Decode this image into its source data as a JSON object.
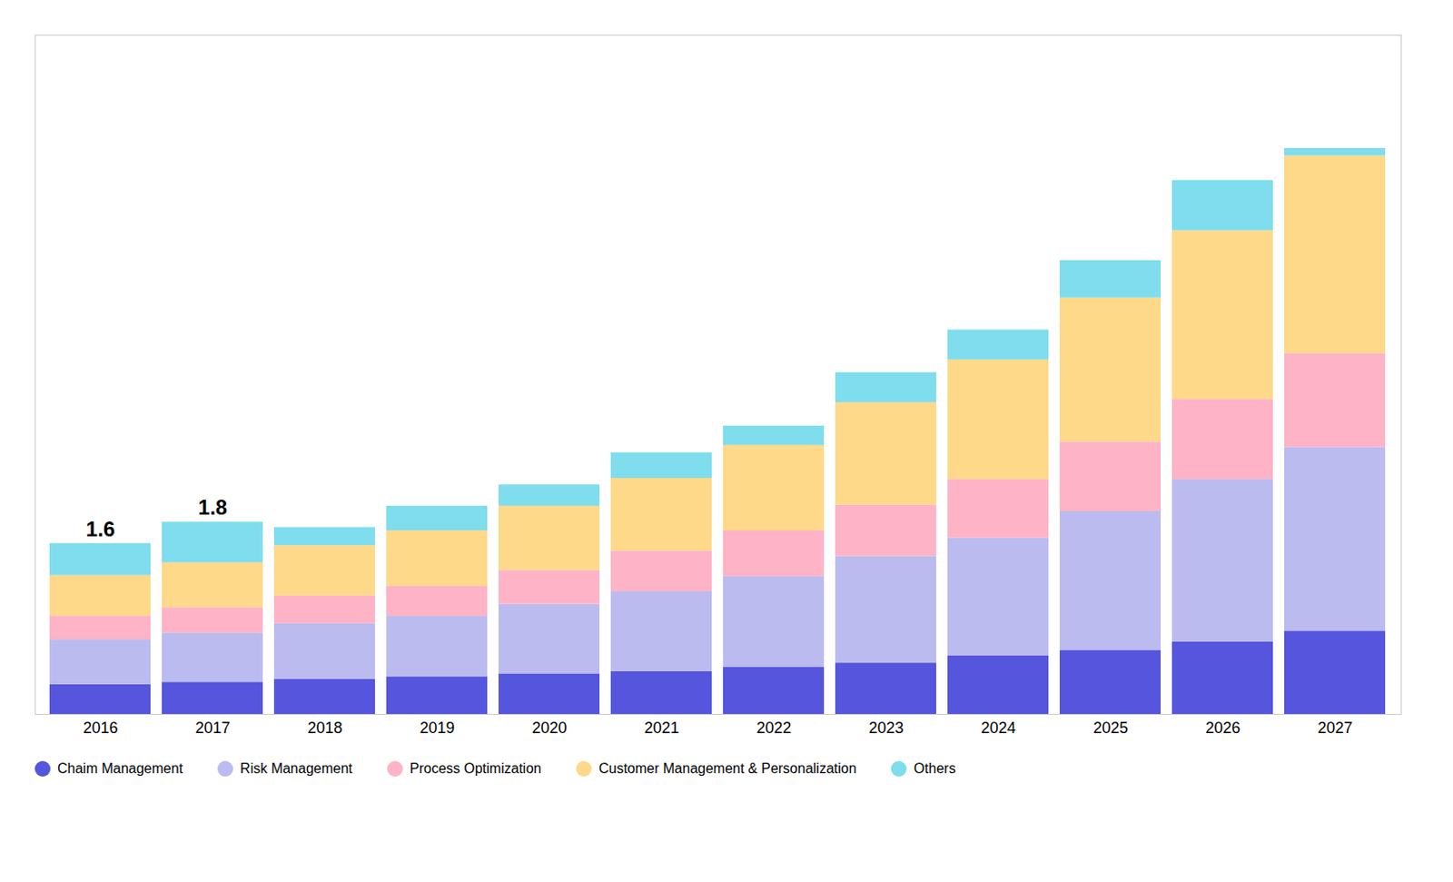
{
  "chart_data": {
    "type": "bar",
    "stacked": true,
    "categories": [
      "2016",
      "2017",
      "2018",
      "2019",
      "2020",
      "2021",
      "2022",
      "2023",
      "2024",
      "2025",
      "2026",
      "2027"
    ],
    "series": [
      {
        "name": "Chaim Management",
        "color": "#5555DD",
        "values": [
          0.28,
          0.3,
          0.33,
          0.35,
          0.38,
          0.4,
          0.44,
          0.48,
          0.55,
          0.6,
          0.68,
          0.78
        ]
      },
      {
        "name": "Risk Management",
        "color": "#BBBBF0",
        "values": [
          0.42,
          0.46,
          0.52,
          0.57,
          0.65,
          0.75,
          0.85,
          1.0,
          1.1,
          1.3,
          1.52,
          1.72
        ]
      },
      {
        "name": "Process Optimization",
        "color": "#FFB3C6",
        "values": [
          0.22,
          0.24,
          0.26,
          0.28,
          0.32,
          0.38,
          0.43,
          0.48,
          0.55,
          0.65,
          0.75,
          0.88
        ]
      },
      {
        "name": "Customer Management & Personalization",
        "color": "#FFD98A",
        "values": [
          0.38,
          0.42,
          0.47,
          0.52,
          0.6,
          0.68,
          0.8,
          0.96,
          1.12,
          1.35,
          1.58,
          1.85
        ]
      },
      {
        "name": "Others",
        "color": "#7FDDEE",
        "values": [
          0.3,
          0.38,
          0.17,
          0.23,
          0.2,
          0.24,
          0.18,
          0.28,
          0.28,
          0.35,
          0.47,
          0.07
        ]
      }
    ],
    "annotations": [
      {
        "category": "2016",
        "value": 1.6,
        "text": "1.6"
      },
      {
        "category": "2017",
        "value": 1.8,
        "text": "1.8"
      }
    ],
    "ylim": [
      0,
      6.36
    ],
    "tick_labels": "x",
    "grid": false,
    "legend": "bottom"
  }
}
